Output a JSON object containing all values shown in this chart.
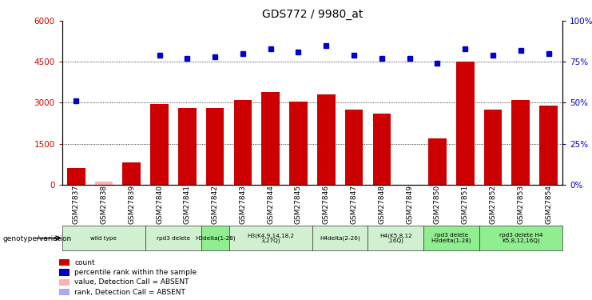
{
  "title": "GDS772 / 9980_at",
  "samples": [
    "GSM27837",
    "GSM27838",
    "GSM27839",
    "GSM27840",
    "GSM27841",
    "GSM27842",
    "GSM27843",
    "GSM27844",
    "GSM27845",
    "GSM27846",
    "GSM27847",
    "GSM27848",
    "GSM27849",
    "GSM27850",
    "GSM27851",
    "GSM27852",
    "GSM27853",
    "GSM27854"
  ],
  "counts": [
    600,
    100,
    800,
    2950,
    2800,
    2800,
    3100,
    3400,
    3050,
    3300,
    2750,
    2600,
    0,
    1700,
    4500,
    2750,
    3100,
    2900
  ],
  "percentiles": [
    51,
    null,
    null,
    79,
    77,
    78,
    80,
    83,
    81,
    85,
    79,
    77,
    77,
    74,
    83,
    79,
    82,
    80
  ],
  "absent_count": [
    false,
    true,
    false,
    false,
    false,
    false,
    false,
    false,
    false,
    false,
    false,
    false,
    false,
    false,
    false,
    false,
    false,
    false
  ],
  "absent_rank": [
    false,
    false,
    true,
    false,
    false,
    false,
    false,
    false,
    false,
    false,
    false,
    false,
    false,
    false,
    false,
    false,
    false,
    false
  ],
  "groups": [
    {
      "label": "wild type",
      "start": 0,
      "end": 3,
      "color": "#d0f0d0"
    },
    {
      "label": "rpd3 delete",
      "start": 3,
      "end": 5,
      "color": "#d0f0d0"
    },
    {
      "label": "H3delta(1-28)",
      "start": 5,
      "end": 6,
      "color": "#90ee90"
    },
    {
      "label": "H3(K4,9,14,18,2\n3,27Q)",
      "start": 6,
      "end": 9,
      "color": "#d0f0d0"
    },
    {
      "label": "H4delta(2-26)",
      "start": 9,
      "end": 11,
      "color": "#d0f0d0"
    },
    {
      "label": "H4(K5,8,12\n,16Q)",
      "start": 11,
      "end": 13,
      "color": "#d0f0d0"
    },
    {
      "label": "rpd3 delete\nH3delta(1-28)",
      "start": 13,
      "end": 15,
      "color": "#90ee90"
    },
    {
      "label": "rpd3 delete H4\nK5,8,12,16Q)",
      "start": 15,
      "end": 18,
      "color": "#90ee90"
    }
  ],
  "ylim_left": [
    0,
    6000
  ],
  "ylim_right": [
    0,
    100
  ],
  "yticks_left": [
    0,
    1500,
    3000,
    4500,
    6000
  ],
  "yticks_right": [
    0,
    25,
    50,
    75,
    100
  ],
  "bar_color": "#cc0000",
  "absent_bar_color": "#ffb0b0",
  "dot_color": "#0000cc",
  "absent_dot_color": "#aaaaee",
  "bg_color": "#ffffff"
}
